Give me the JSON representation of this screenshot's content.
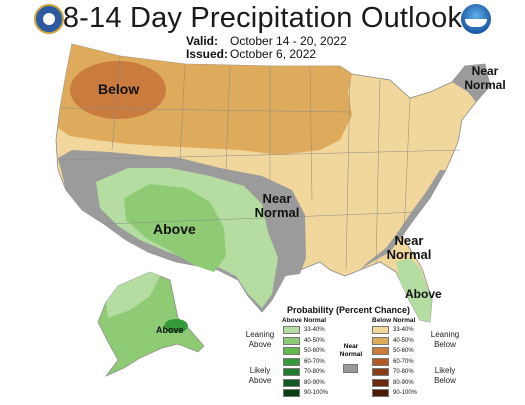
{
  "header": {
    "title": "8-14 Day Precipitation Outlook",
    "valid_label": "Valid:",
    "valid_value": "October 14 - 20, 2022",
    "issued_label": "Issued:",
    "issued_value": "October 6, 2022"
  },
  "map_labels": {
    "below_nw": "Below",
    "near_normal_ne": "Near Normal",
    "near_normal_central": "Near Normal",
    "above_sw": "Above",
    "near_normal_se": "Near Normal",
    "above_fl": "Above",
    "above_ak": "Above"
  },
  "legend": {
    "title": "Probability (Percent Chance)",
    "above_header": "Above Normal",
    "below_header": "Below Normal",
    "near_header": "Near Normal",
    "leaning_above": "Leaning Above",
    "likely_above": "Likely Above",
    "leaning_below": "Leaning Below",
    "likely_below": "Likely Below",
    "ranges": [
      "33-40%",
      "40-50%",
      "50-60%",
      "60-70%",
      "70-80%",
      "80-90%",
      "90-100%"
    ],
    "above_colors": [
      "#b5dca1",
      "#8fcb75",
      "#63b84e",
      "#379a3a",
      "#217c30",
      "#125a22",
      "#0a3c14"
    ],
    "below_colors": [
      "#f2d79c",
      "#deaa5b",
      "#c97c3e",
      "#b15a26",
      "#8a3e15",
      "#6b2a0b",
      "#4a1a06"
    ],
    "near_color": "#999999"
  }
}
